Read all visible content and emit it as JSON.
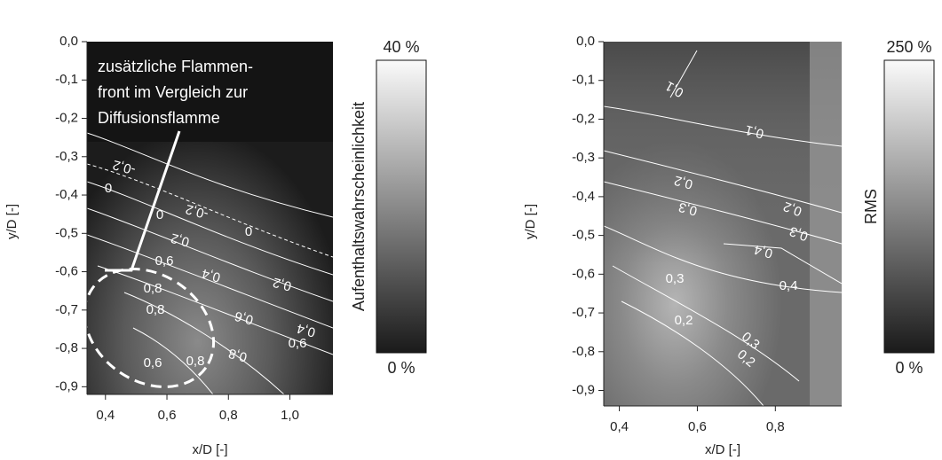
{
  "chart_data": [
    {
      "type": "contour",
      "xlabel": "x/D [-]",
      "ylabel": "y/D [-]",
      "xlim": [
        0.34,
        1.14
      ],
      "ylim": [
        -0.92,
        0
      ],
      "xticks": [
        {
          "value": 0.4,
          "label": "0,4"
        },
        {
          "value": 0.6,
          "label": "0,6"
        },
        {
          "value": 0.8,
          "label": "0,8"
        },
        {
          "value": 1.0,
          "label": "1,0"
        }
      ],
      "yticks": [
        {
          "value": 0,
          "label": "0,0"
        },
        {
          "value": -0.1,
          "label": "-0,1"
        },
        {
          "value": -0.2,
          "label": "-0,2"
        },
        {
          "value": -0.3,
          "label": "-0,3"
        },
        {
          "value": -0.4,
          "label": "-0,4"
        },
        {
          "value": -0.5,
          "label": "-0,5"
        },
        {
          "value": -0.6,
          "label": "-0,6"
        },
        {
          "value": -0.7,
          "label": "-0,7"
        },
        {
          "value": -0.8,
          "label": "-0,8"
        },
        {
          "value": -0.9,
          "label": "-0,9"
        }
      ],
      "colorbar": {
        "title": "Aufenthaltswahrscheinlichkeit",
        "lim": [
          0,
          40
        ],
        "ticks": [
          {
            "value": 0,
            "label": "0 %"
          },
          {
            "value": 40,
            "label": "40 %"
          }
        ]
      },
      "annotation": [
        "zusätzliche Flammen-",
        "front im Vergleich zur",
        "Diffusionsflamme"
      ],
      "contour_labels": [
        "-0,2",
        "0",
        "-0,2",
        "0",
        "0,2",
        "0",
        "0,6",
        "0,4",
        "0,2",
        "0,8",
        "0,8",
        "0,6",
        "0,4",
        "0,6",
        "0,8",
        "0,8",
        "0,6"
      ]
    },
    {
      "type": "contour",
      "xlabel": "x/D [-]",
      "ylabel": "y/D [-]",
      "xlim": [
        0.36,
        0.97
      ],
      "ylim": [
        -0.94,
        0
      ],
      "xticks": [
        {
          "value": 0.4,
          "label": "0,4"
        },
        {
          "value": 0.6,
          "label": "0,6"
        },
        {
          "value": 0.8,
          "label": "0,8"
        }
      ],
      "yticks": [
        {
          "value": 0,
          "label": "0,0"
        },
        {
          "value": -0.1,
          "label": "-0,1"
        },
        {
          "value": -0.2,
          "label": "-0,2"
        },
        {
          "value": -0.3,
          "label": "-0,3"
        },
        {
          "value": -0.4,
          "label": "-0,4"
        },
        {
          "value": -0.5,
          "label": "-0,5"
        },
        {
          "value": -0.6,
          "label": "-0,6"
        },
        {
          "value": -0.7,
          "label": "-0,7"
        },
        {
          "value": -0.8,
          "label": "-0,8"
        },
        {
          "value": -0.9,
          "label": "-0,9"
        }
      ],
      "colorbar": {
        "title": "RMS",
        "lim": [
          0,
          250
        ],
        "ticks": [
          {
            "value": 0,
            "label": "0 %"
          },
          {
            "value": 250,
            "label": "250 %"
          }
        ]
      },
      "contour_labels": [
        "0,1",
        "0,1",
        "0,2",
        "0,3",
        "0,2",
        "0,3",
        "0,4",
        "0,4",
        "0,3",
        "0,2",
        "0,3",
        "0,2"
      ]
    }
  ]
}
